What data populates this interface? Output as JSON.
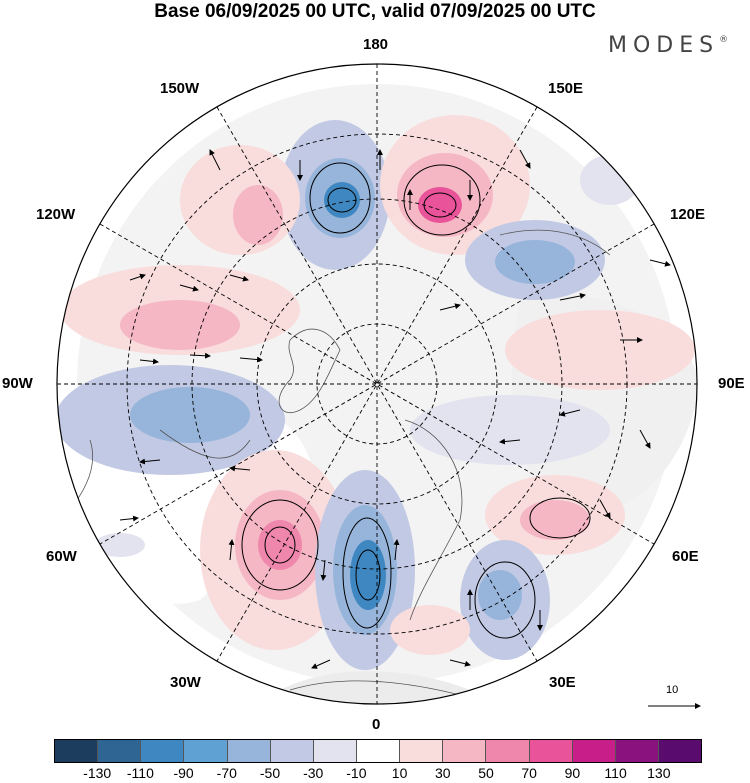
{
  "title": "Base 06/09/2025 00 UTC, valid 07/09/2025 00 UTC",
  "brand": "MODES",
  "brand_mark": "®",
  "longitude_labels": {
    "top": "180",
    "bottom": "0",
    "left": "90W",
    "right": "90E",
    "upper_left_1": "150W",
    "upper_left_2": "120W",
    "upper_right_1": "150E",
    "upper_right_2": "120E",
    "lower_left_1": "60W",
    "lower_left_2": "30W",
    "lower_right_1": "60E",
    "lower_right_2": "30E"
  },
  "reference_vector": {
    "value": "10"
  },
  "colorbar": {
    "colors": [
      "#1d3d5e",
      "#2e6593",
      "#3f87c1",
      "#5fa1d2",
      "#97b5db",
      "#c2c9e4",
      "#e3e3f0",
      "#ffffff",
      "#f9dcdc",
      "#f5b7c4",
      "#ef86ac",
      "#e8539a",
      "#c71e89",
      "#8a127e",
      "#5a0c6e"
    ],
    "labels": [
      "-130",
      "-110",
      "-90",
      "-70",
      "-50",
      "-30",
      "-10",
      "10",
      "30",
      "50",
      "70",
      "90",
      "110",
      "130"
    ]
  },
  "anomalies": [
    {
      "name": "pacific-low",
      "value": -90
    },
    {
      "name": "bering-high",
      "value": 90
    },
    {
      "name": "siberia-low",
      "value": -50
    },
    {
      "name": "atlantic-high",
      "value": 70
    },
    {
      "name": "europe-low",
      "value": -90
    },
    {
      "name": "russia-high",
      "value": 50
    },
    {
      "name": "mediterranean-low",
      "value": -50
    },
    {
      "name": "canada-low",
      "value": -50
    },
    {
      "name": "alaska-high",
      "value": 50
    }
  ]
}
